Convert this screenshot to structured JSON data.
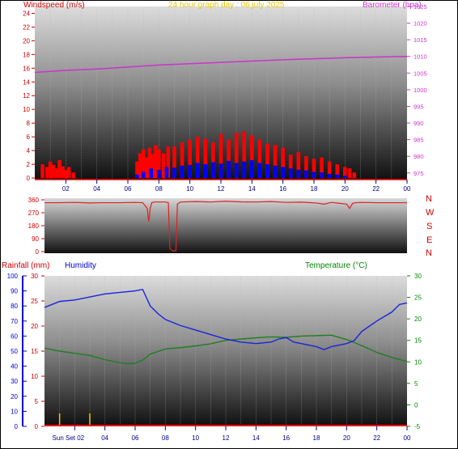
{
  "header": {
    "windspeed_label": "Windspeed (m/s)",
    "title": "24 hour graph day : 06 july 2025",
    "barometer_label": "Barometer (hpa)"
  },
  "colors": {
    "wind_avg": "#0000ff",
    "wind_gust": "#ff0000",
    "barometer": "#cc33cc",
    "direction": "#dd2222",
    "rainfall": "#ff0000",
    "humidity": "#1a22dd",
    "temperature": "#1f7f1f",
    "left_labels": "#cc0000",
    "title": "#e8c800",
    "humidity_axis": "#0000cc",
    "temp_axis": "#008800",
    "sunset_marker": "#e8c800"
  },
  "lower": {
    "rainfall_label": "Rainfall (mm)",
    "humidity_label": "Humidity",
    "temperature_label": "Temperature (°C)",
    "sunset_label": "Sun Set 02"
  },
  "compass": [
    "N",
    "W",
    "S",
    "E",
    "N"
  ],
  "chart_data": [
    {
      "type": "bar",
      "title": "24 hour graph day : 06 july 2025",
      "x_ticks": [
        "02",
        "04",
        "06",
        "08",
        "10",
        "12",
        "14",
        "16",
        "18",
        "20",
        "22",
        "00"
      ],
      "xlim": [
        0,
        24
      ],
      "y_left": {
        "label": "Windspeed (m/s)",
        "ylim": [
          0,
          25
        ],
        "ticks": [
          0,
          2,
          4,
          6,
          8,
          10,
          12,
          14,
          16,
          18,
          20,
          22,
          24
        ]
      },
      "y_right": {
        "label": "Barometer (hpa)",
        "ylim": [
          973,
          1025
        ],
        "ticks": [
          975,
          980,
          985,
          990,
          995,
          1000,
          1005,
          1010,
          1015,
          1020,
          1025
        ]
      },
      "series": [
        {
          "name": "Windspeed (m/s)",
          "kind": "gust",
          "x": [
            0.5,
            0.8,
            1.0,
            1.2,
            1.4,
            1.6,
            1.8,
            2.0,
            2.2,
            2.5,
            6.6,
            6.8,
            7.0,
            7.2,
            7.4,
            7.6,
            7.8,
            8.0,
            8.3,
            8.6,
            9.0,
            9.5,
            10.0,
            10.5,
            11.0,
            11.5,
            12.0,
            12.5,
            13.0,
            13.5,
            14.0,
            14.5,
            15.0,
            15.5,
            16.0,
            16.5,
            17.0,
            17.5,
            18.0,
            18.5,
            19.0,
            19.5,
            20.0,
            20.3,
            20.6
          ],
          "values": [
            2.0,
            1.6,
            2.4,
            1.9,
            1.4,
            2.6,
            1.7,
            1.2,
            1.6,
            0.8,
            2.4,
            3.6,
            4.2,
            3.0,
            4.4,
            3.5,
            4.8,
            4.2,
            3.6,
            4.6,
            4.6,
            5.2,
            5.6,
            6.0,
            5.7,
            5.2,
            6.4,
            5.6,
            6.6,
            6.8,
            6.2,
            5.6,
            5.0,
            4.8,
            4.4,
            3.4,
            3.8,
            3.2,
            2.8,
            3.0,
            2.4,
            2.0,
            1.6,
            1.4,
            0.8
          ]
        },
        {
          "name": "Windspeed (m/s)",
          "kind": "average",
          "x": [
            6.6,
            7.0,
            7.5,
            8.0,
            8.5,
            9.0,
            9.5,
            10.0,
            10.5,
            11.0,
            11.5,
            12.0,
            12.5,
            13.0,
            13.5,
            14.0,
            14.5,
            15.0,
            15.5,
            16.0,
            16.5,
            17.0,
            17.5,
            18.0,
            18.5,
            19.0,
            19.5,
            20.0
          ],
          "values": [
            0.5,
            0.9,
            1.4,
            1.2,
            1.6,
            1.5,
            1.8,
            1.9,
            2.2,
            2.0,
            2.3,
            2.1,
            2.5,
            2.2,
            2.4,
            2.6,
            2.2,
            2.0,
            1.8,
            1.6,
            1.4,
            1.2,
            1.1,
            0.9,
            0.8,
            0.6,
            0.5,
            0.3
          ]
        },
        {
          "name": "Barometer (hpa)",
          "kind": "line",
          "x": [
            0,
            2,
            4,
            6,
            8,
            10,
            12,
            14,
            16,
            18,
            20,
            22,
            24
          ],
          "values": [
            1005.2,
            1005.8,
            1006.2,
            1006.8,
            1007.4,
            1007.8,
            1008.2,
            1008.6,
            1009.0,
            1009.3,
            1009.6,
            1009.8,
            1010.0
          ]
        }
      ]
    },
    {
      "type": "line",
      "title": "Wind direction",
      "x_ticks": [],
      "xlim": [
        0,
        24
      ],
      "ylim": [
        0,
        360
      ],
      "y_ticks": [
        0,
        90,
        180,
        270,
        360
      ],
      "series": [
        {
          "name": "Wind direction",
          "x": [
            0,
            1,
            2,
            3,
            4,
            5,
            6,
            6.5,
            6.8,
            6.9,
            7.0,
            7.1,
            7.3,
            8.0,
            8.2,
            8.3,
            8.5,
            8.7,
            8.8,
            9.0,
            10,
            11,
            12,
            13,
            14,
            15,
            16,
            17,
            18,
            18.5,
            19.0,
            19.5,
            20.0,
            20.2,
            20.4,
            20.6,
            21,
            22,
            23,
            24
          ],
          "values": [
            340,
            340,
            342,
            338,
            340,
            340,
            342,
            340,
            300,
            210,
            300,
            340,
            345,
            345,
            340,
            20,
            5,
            5,
            330,
            345,
            348,
            345,
            350,
            346,
            345,
            348,
            342,
            344,
            338,
            330,
            342,
            336,
            330,
            300,
            335,
            340,
            342,
            340,
            340,
            340
          ]
        }
      ]
    },
    {
      "type": "line",
      "title": "",
      "x_ticks": [
        "Sun Set 02",
        "04",
        "06",
        "08",
        "10",
        "12",
        "14",
        "16",
        "18",
        "20",
        "22",
        "00"
      ],
      "xlim": [
        0,
        24
      ],
      "y_humidity": {
        "label": "Humidity",
        "ylim": [
          0,
          100
        ],
        "ticks": [
          0,
          10,
          20,
          30,
          40,
          50,
          60,
          70,
          80,
          90,
          100
        ]
      },
      "y_rainfall": {
        "label": "Rainfall (mm)",
        "ylim": [
          0,
          30
        ],
        "ticks": [
          0,
          5,
          10,
          15,
          20,
          25,
          30
        ]
      },
      "y_temperature": {
        "label": "Temperature (°C)",
        "ylim": [
          -5,
          30
        ],
        "ticks": [
          -5,
          0,
          5,
          10,
          15,
          20,
          25,
          30
        ]
      },
      "series": [
        {
          "name": "Humidity",
          "axis": "humidity",
          "x": [
            0,
            1,
            2,
            3,
            4,
            5,
            6,
            6.5,
            7.0,
            7.5,
            8,
            9,
            10,
            11,
            12,
            13,
            14,
            15,
            15.5,
            16,
            16.5,
            17,
            18,
            18.5,
            19,
            19.5,
            20,
            20.5,
            21,
            22,
            23,
            23.5,
            24
          ],
          "values": [
            79,
            83,
            84,
            86,
            88,
            89,
            90,
            91,
            80,
            75,
            71,
            67,
            64,
            61,
            58,
            56,
            55,
            56,
            58,
            59,
            56,
            55,
            53,
            51,
            53,
            54,
            55,
            57,
            63,
            70,
            76,
            81,
            82
          ]
        },
        {
          "name": "Temperature (°C)",
          "axis": "temperature",
          "x": [
            0,
            1,
            2,
            3,
            4,
            5,
            5.5,
            6,
            6.5,
            7,
            8,
            9,
            10,
            11,
            12,
            13,
            14,
            15,
            16,
            17,
            18,
            19,
            20,
            21,
            22,
            23,
            24
          ],
          "values": [
            13.2,
            12.5,
            12.0,
            11.5,
            10.5,
            9.8,
            9.6,
            9.7,
            10.4,
            11.8,
            13.0,
            13.3,
            13.7,
            14.2,
            15.0,
            15.3,
            15.6,
            15.8,
            15.7,
            16.0,
            16.1,
            16.2,
            15.2,
            13.8,
            12.2,
            11.0,
            10.1
          ]
        },
        {
          "name": "Rainfall (mm)",
          "axis": "rainfall",
          "x": [
            0,
            24
          ],
          "values": [
            0,
            0
          ]
        }
      ],
      "markers": [
        {
          "label": "Sun Set 02",
          "x": 1.0
        },
        {
          "label": "",
          "x": 3.0
        }
      ]
    }
  ]
}
